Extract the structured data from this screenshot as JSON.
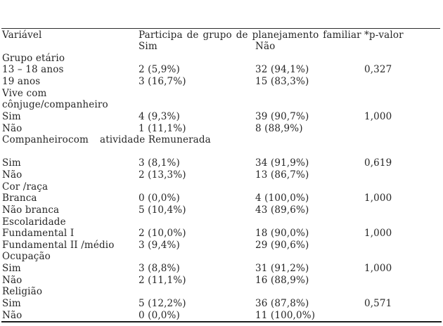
{
  "document": {
    "background": "#ffffff",
    "text_color": "#262626",
    "rule_color": "#1c1c1c"
  },
  "table": {
    "header": {
      "variable": "Variável",
      "group": "Participa de grupo de planejamento familiar",
      "sim": "Sim",
      "nao": "Não",
      "pvalue": "*p-valor"
    },
    "rows": [
      {
        "label": "Grupo etário"
      },
      {
        "label": "13 – 18 anos",
        "sim": "2 (5,9%)",
        "nao": "32 (94,1%)",
        "p": "0,327"
      },
      {
        "label": "19 anos",
        "sim": "3 (16,7%)",
        "nao": "15 (83,3%)",
        "p": ""
      },
      {
        "label": "Vive com"
      },
      {
        "label": "cônjuge/companheiro"
      },
      {
        "label": "Sim",
        "sim": "4 (9,3%)",
        "nao": "39 (90,7%)",
        "p": "1,000"
      },
      {
        "label": "Não",
        "sim": "1 (11,1%)",
        "nao": "8 (88,9%)",
        "p": ""
      },
      {
        "label": "Companheiro com atividade Remunerada",
        "parts": [
          "Companheiro",
          "com",
          "atividade Remunerada"
        ]
      },
      {
        "label": ""
      },
      {
        "label": "Sim",
        "sim": "3 (8,1%)",
        "nao": "34 (91,9%)",
        "p": "0,619"
      },
      {
        "label": "Não",
        "sim": "2 (13,3%)",
        "nao": "13 (86,7%)",
        "p": ""
      },
      {
        "label": "Cor /raça"
      },
      {
        "label": "Branca",
        "sim": "0 (0,0%)",
        "nao": "4 (100,0%)",
        "p": "1,000"
      },
      {
        "label": "Não branca",
        "sim": "5 (10,4%)",
        "nao": "43 (89,6%)",
        "p": ""
      },
      {
        "label": "Escolaridade"
      },
      {
        "label": "Fundamental I",
        "sim": "2 (10,0%)",
        "nao": "18 (90,0%)",
        "p": "1,000"
      },
      {
        "label": "Fundamental II /médio",
        "sim": "3 (9,4%)",
        "nao": "29 (90,6%)",
        "p": ""
      },
      {
        "label": "Ocupação"
      },
      {
        "label": "Sim",
        "sim": "3 (8,8%)",
        "nao": "31 (91,2%)",
        "p": "1,000"
      },
      {
        "label": "Não",
        "sim": "2 (11,1%)",
        "nao": "16 (88,9%)",
        "p": ""
      },
      {
        "label": "Religião"
      },
      {
        "label": "Sim",
        "sim": "5 (12,2%)",
        "nao": "36 (87,8%)",
        "p": "0,571"
      },
      {
        "label": "Não",
        "sim": "0 (0,0%)",
        "nao": "11 (100,0%)",
        "p": ""
      }
    ]
  }
}
